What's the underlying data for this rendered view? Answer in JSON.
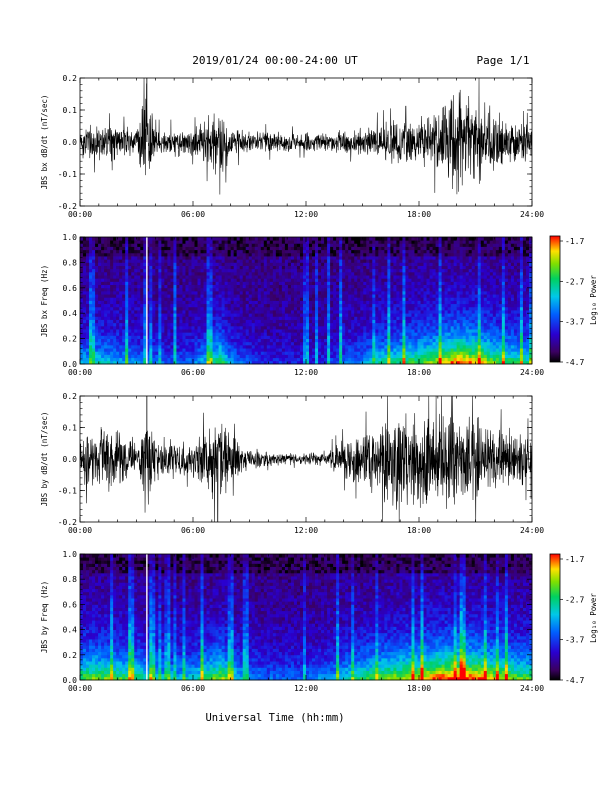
{
  "header": {
    "title": "2019/01/24  00:00-24:00 UT",
    "page": "Page 1/1"
  },
  "x_axis": {
    "label": "Universal Time (hh:mm)",
    "ticks": [
      "00:00",
      "06:00",
      "12:00",
      "18:00",
      "24:00"
    ],
    "range_hours": [
      0,
      24
    ]
  },
  "colorbar": {
    "label": "Log₁₀ Power",
    "ticks": [
      "-1.7",
      "-2.7",
      "-3.7",
      "-4.7"
    ],
    "range": [
      -4.7,
      -1.7
    ],
    "colormap": "rainbow (black-purple-blue-cyan-green-yellow-red)"
  },
  "chart_data": [
    {
      "type": "line",
      "title": "",
      "ylabel": "JBS bx dB/dt (nT/sec)",
      "xlabel": "",
      "ylim": [
        -0.2,
        0.2
      ],
      "yticks": [
        "0.2",
        "0.1",
        "0.0",
        "-0.1",
        "-0.2"
      ],
      "x_range_hours": [
        0,
        24
      ],
      "envelope": {
        "x_hours": [
          0,
          1,
          2,
          3,
          3.5,
          4,
          5,
          6,
          7,
          7.5,
          8,
          9,
          10,
          11,
          12,
          13,
          14,
          15,
          16,
          17,
          18,
          19,
          19.5,
          20,
          21,
          22,
          23,
          24
        ],
        "amplitude": [
          0.06,
          0.07,
          0.06,
          0.05,
          0.2,
          0.05,
          0.05,
          0.05,
          0.1,
          0.12,
          0.06,
          0.04,
          0.04,
          0.035,
          0.035,
          0.035,
          0.04,
          0.05,
          0.07,
          0.08,
          0.08,
          0.12,
          0.16,
          0.2,
          0.15,
          0.12,
          0.08,
          0.06
        ]
      }
    },
    {
      "type": "heatmap",
      "title": "",
      "ylabel": "JBS bx Freq (Hz)",
      "xlabel": "",
      "ylim": [
        0.0,
        1.0
      ],
      "yticks": [
        "1.0",
        "0.8",
        "0.6",
        "0.4",
        "0.2",
        "0.0"
      ],
      "x_range_hours": [
        0,
        24
      ],
      "value_units": "Log10 Power",
      "activity": {
        "x_hours": [
          0,
          1,
          2,
          3,
          4,
          5,
          6,
          7,
          7.5,
          8,
          9,
          10,
          11,
          12,
          13,
          14,
          15,
          16,
          17,
          18,
          19,
          20,
          21,
          22,
          23,
          24
        ],
        "level": [
          0.35,
          0.4,
          0.35,
          0.3,
          0.25,
          0.2,
          0.25,
          0.45,
          0.55,
          0.3,
          0.2,
          0.15,
          0.15,
          0.12,
          0.15,
          0.25,
          0.3,
          0.45,
          0.5,
          0.55,
          0.65,
          0.8,
          0.75,
          0.6,
          0.5,
          0.45
        ]
      }
    },
    {
      "type": "line",
      "title": "",
      "ylabel": "JBS by dB/dt (nT/sec)",
      "xlabel": "",
      "ylim": [
        -0.2,
        0.2
      ],
      "yticks": [
        "0.2",
        "0.1",
        "0.0",
        "-0.1",
        "-0.2"
      ],
      "x_range_hours": [
        0,
        24
      ],
      "envelope": {
        "x_hours": [
          0,
          1,
          2,
          3,
          3.5,
          4,
          5,
          6,
          7,
          7.5,
          8,
          9,
          10,
          11,
          12,
          13,
          14,
          15,
          16,
          17,
          18,
          19,
          20,
          21,
          22,
          23,
          24
        ],
        "amplitude": [
          0.09,
          0.12,
          0.1,
          0.08,
          0.2,
          0.09,
          0.07,
          0.06,
          0.14,
          0.19,
          0.09,
          0.04,
          0.025,
          0.02,
          0.02,
          0.03,
          0.07,
          0.1,
          0.14,
          0.2,
          0.17,
          0.16,
          0.18,
          0.15,
          0.12,
          0.1,
          0.09
        ]
      }
    },
    {
      "type": "heatmap",
      "title": "",
      "ylabel": "JBS by Freq (Hz)",
      "xlabel": "",
      "ylim": [
        0.0,
        1.0
      ],
      "yticks": [
        "1.0",
        "0.8",
        "0.6",
        "0.4",
        "0.2",
        "0.0"
      ],
      "x_range_hours": [
        0,
        24
      ],
      "value_units": "Log10 Power",
      "activity": {
        "x_hours": [
          0,
          1,
          2,
          3,
          4,
          5,
          6,
          7,
          7.5,
          8,
          9,
          10,
          11,
          12,
          13,
          14,
          15,
          16,
          17,
          18,
          19,
          20,
          21,
          22,
          23,
          24
        ],
        "level": [
          0.55,
          0.6,
          0.55,
          0.5,
          0.4,
          0.35,
          0.4,
          0.55,
          0.65,
          0.45,
          0.3,
          0.25,
          0.25,
          0.25,
          0.3,
          0.4,
          0.5,
          0.6,
          0.65,
          0.7,
          0.8,
          0.85,
          0.8,
          0.7,
          0.6,
          0.55
        ]
      }
    }
  ]
}
